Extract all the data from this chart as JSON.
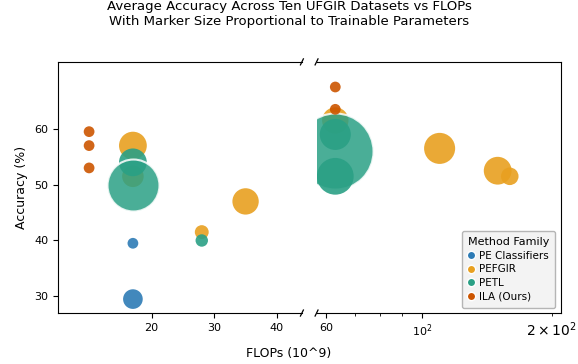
{
  "title": "Average Accuracy Across Ten UFGIR Datasets vs FLOPs\nWith Marker Size Proportional to Trainable Parameters",
  "xlabel": "FLOPs (10^9)",
  "ylabel": "Accuracy (%)",
  "families": {
    "PE Classifiers": {
      "color": "#2d7bb5",
      "points": [
        {
          "flops": 17,
          "acc": 39.5,
          "params": 0.3,
          "panel": "left"
        },
        {
          "flops": 17,
          "acc": 29.5,
          "params": 1.0,
          "panel": "left"
        }
      ]
    },
    "PEFGIR": {
      "color": "#e8a020",
      "points": [
        {
          "flops": 17,
          "acc": 57.0,
          "params": 2.0,
          "panel": "left"
        },
        {
          "flops": 17,
          "acc": 51.5,
          "params": 1.2,
          "panel": "left"
        },
        {
          "flops": 28,
          "acc": 41.5,
          "params": 0.5,
          "panel": "left"
        },
        {
          "flops": 35,
          "acc": 47.0,
          "params": 1.8,
          "panel": "left"
        },
        {
          "flops": 63,
          "acc": 61.5,
          "params": 1.8,
          "panel": "right"
        },
        {
          "flops": 110,
          "acc": 56.5,
          "params": 2.5,
          "panel": "right"
        },
        {
          "flops": 150,
          "acc": 52.5,
          "params": 2.0,
          "panel": "right"
        },
        {
          "flops": 160,
          "acc": 51.5,
          "params": 0.8,
          "panel": "right"
        }
      ]
    },
    "PETL": {
      "color": "#2aa085",
      "points": [
        {
          "flops": 17,
          "acc": 54.0,
          "params": 2.0,
          "panel": "left"
        },
        {
          "flops": 17,
          "acc": 50.0,
          "params": 7.0,
          "panel": "left"
        },
        {
          "flops": 28,
          "acc": 40.0,
          "params": 0.4,
          "panel": "left"
        },
        {
          "flops": 63,
          "acc": 59.0,
          "params": 2.5,
          "panel": "right"
        },
        {
          "flops": 63,
          "acc": 56.0,
          "params": 15.0,
          "panel": "right"
        },
        {
          "flops": 63,
          "acc": 51.5,
          "params": 3.5,
          "panel": "right"
        }
      ]
    },
    "ILA (Ours)": {
      "color": "#cc5500",
      "points": [
        {
          "flops": 10,
          "acc": 59.5,
          "params": 0.3,
          "panel": "left"
        },
        {
          "flops": 10,
          "acc": 57.0,
          "params": 0.3,
          "panel": "left"
        },
        {
          "flops": 10,
          "acc": 53.0,
          "params": 0.3,
          "panel": "left"
        },
        {
          "flops": 63,
          "acc": 67.5,
          "params": 0.3,
          "panel": "right"
        },
        {
          "flops": 63,
          "acc": 63.5,
          "params": 0.3,
          "panel": "right"
        }
      ]
    }
  },
  "ylim": [
    27,
    72
  ],
  "yticks": [
    30,
    40,
    50,
    60
  ],
  "left_xlim": [
    5,
    44
  ],
  "left_xticks": [
    20,
    30,
    40
  ],
  "right_xlim": [
    57,
    210
  ],
  "right_xticks": [
    100
  ],
  "size_scale": 200,
  "background_color": "#ffffff",
  "legend_bg": "#f2f2f2"
}
